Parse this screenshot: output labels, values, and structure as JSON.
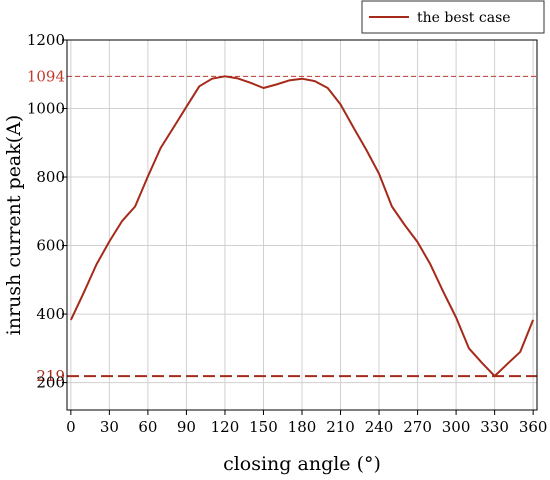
{
  "chart_data": {
    "type": "line",
    "xlabel": "closing angle (°)",
    "ylabel": "inrush current peak(A)",
    "xlim": [
      -3,
      363
    ],
    "ylim": [
      120,
      1200
    ],
    "x_ticks": [
      0,
      30,
      60,
      90,
      120,
      150,
      180,
      210,
      240,
      270,
      300,
      330,
      360
    ],
    "y_ticks": [
      200,
      400,
      600,
      800,
      1000,
      1200
    ],
    "grid": true,
    "legend_position": "top-right",
    "series": [
      {
        "name": "the best case",
        "color": "#a52a1a",
        "x": [
          0,
          10,
          20,
          30,
          40,
          50,
          60,
          70,
          80,
          90,
          100,
          110,
          120,
          130,
          140,
          150,
          160,
          170,
          180,
          190,
          200,
          210,
          220,
          230,
          240,
          250,
          260,
          270,
          280,
          290,
          300,
          310,
          320,
          330,
          340,
          350,
          360
        ],
        "y": [
          383,
          462,
          545,
          612,
          672,
          714,
          802,
          885,
          945,
          1005,
          1065,
          1087,
          1094,
          1088,
          1075,
          1060,
          1070,
          1082,
          1087,
          1080,
          1060,
          1012,
          945,
          880,
          810,
          714,
          660,
          610,
          545,
          465,
          390,
          300,
          258,
          219,
          255,
          290,
          383
        ]
      }
    ],
    "reference_lines": [
      {
        "label": "1094",
        "value": 1094,
        "style": "dashed-thin",
        "color": "#c0392b"
      },
      {
        "label": "219",
        "value": 219,
        "style": "dashed-thick",
        "color": "#a52a1a"
      }
    ]
  }
}
